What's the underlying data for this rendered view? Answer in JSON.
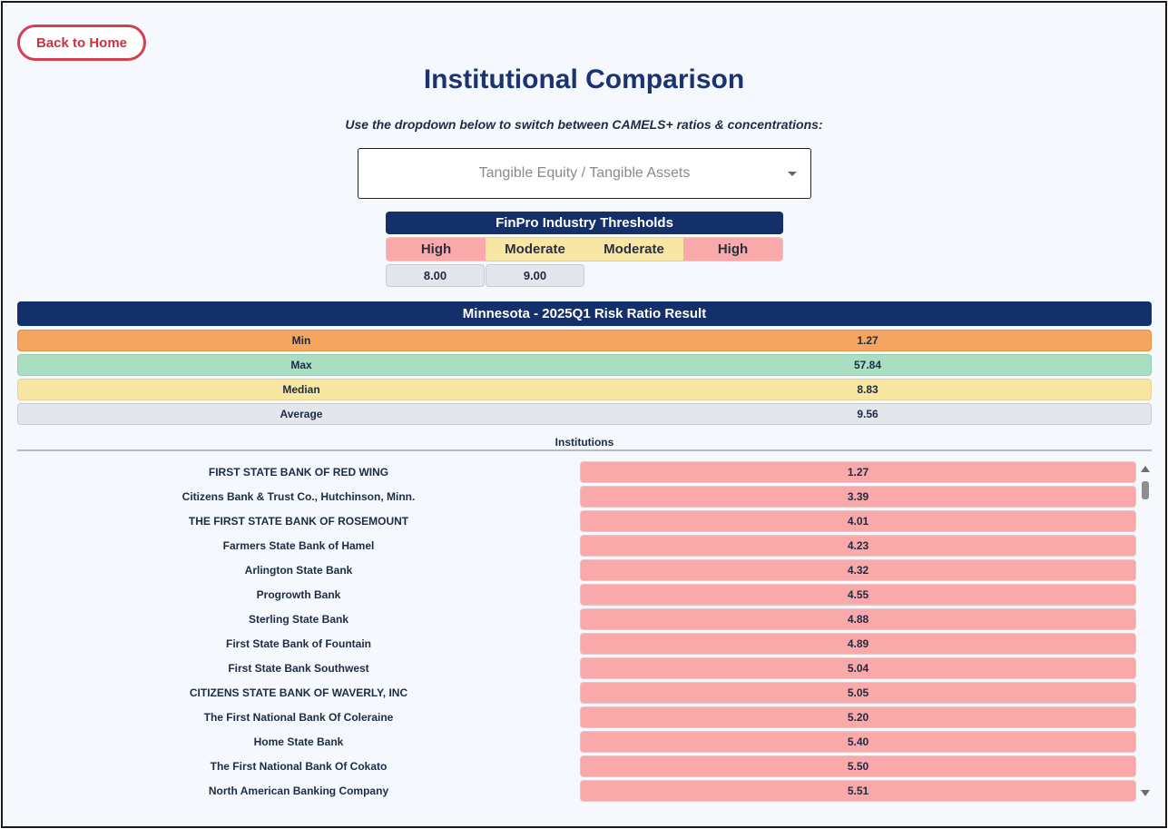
{
  "header": {
    "back_label": "Back to Home",
    "title": "Institutional Comparison",
    "subtitle": "Use the dropdown below to switch between CAMELS+ ratios & concentrations:"
  },
  "dropdown": {
    "selected": "Tangible Equity / Tangible Assets",
    "icon": "chevron-down-icon"
  },
  "thresholds": {
    "title": "FinPro Industry Thresholds",
    "levels": [
      "High",
      "Moderate",
      "Moderate",
      "High"
    ],
    "values": [
      "8.00",
      "9.00"
    ],
    "colors": {
      "high": "#f9a9a9",
      "moderate": "#f8e6a4"
    }
  },
  "result": {
    "title": "Minnesota - 2025Q1 Risk Ratio Result",
    "stats": [
      {
        "label": "Min",
        "value": "1.27",
        "color": "#f4a660"
      },
      {
        "label": "Max",
        "value": "57.84",
        "color": "#a9dec2"
      },
      {
        "label": "Median",
        "value": "8.83",
        "color": "#f8e6a4"
      },
      {
        "label": "Average",
        "value": "9.56",
        "color": "#e3e6ea"
      }
    ]
  },
  "institutions": {
    "header": "Institutions",
    "rows": [
      {
        "name": "FIRST STATE BANK OF RED WING",
        "value": "1.27"
      },
      {
        "name": "Citizens Bank & Trust Co., Hutchinson, Minn.",
        "value": "3.39"
      },
      {
        "name": "THE FIRST STATE BANK OF ROSEMOUNT",
        "value": "4.01"
      },
      {
        "name": "Farmers State Bank of Hamel",
        "value": "4.23"
      },
      {
        "name": "Arlington State Bank",
        "value": "4.32"
      },
      {
        "name": "Progrowth Bank",
        "value": "4.55"
      },
      {
        "name": "Sterling State Bank",
        "value": "4.88"
      },
      {
        "name": "First State Bank of Fountain",
        "value": "4.89"
      },
      {
        "name": "First State Bank Southwest",
        "value": "5.04"
      },
      {
        "name": "CITIZENS STATE BANK OF WAVERLY, INC",
        "value": "5.05"
      },
      {
        "name": "The First National Bank Of Coleraine",
        "value": "5.20"
      },
      {
        "name": "Home State Bank",
        "value": "5.40"
      },
      {
        "name": "The First National Bank Of Cokato",
        "value": "5.50"
      },
      {
        "name": "North American Banking Company",
        "value": "5.51"
      }
    ]
  }
}
